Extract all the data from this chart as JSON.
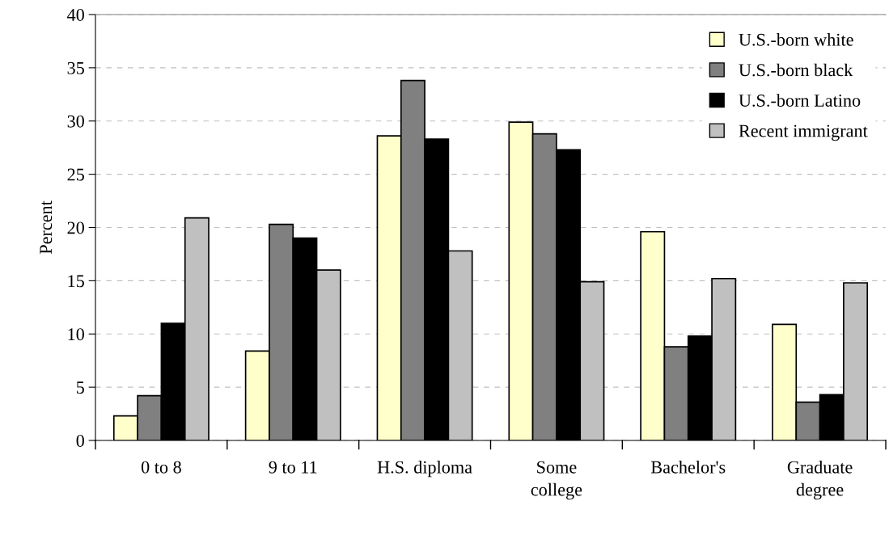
{
  "chart_data": {
    "type": "bar",
    "ylabel": "Percent",
    "categories": [
      "0 to 8",
      "9 to 11",
      "H.S. diploma",
      "Some\ncollege",
      "Bachelor's",
      "Graduate\ndegree"
    ],
    "series": [
      {
        "name": "U.S.-born white",
        "color": "#ffffcc",
        "values": [
          2.3,
          8.4,
          28.6,
          29.9,
          19.6,
          10.9
        ]
      },
      {
        "name": "U.S.-born black",
        "color": "#808080",
        "values": [
          4.2,
          20.3,
          33.8,
          28.8,
          8.8,
          3.6
        ]
      },
      {
        "name": "U.S.-born Latino",
        "color": "#000000",
        "values": [
          11.0,
          19.0,
          28.3,
          27.3,
          9.8,
          4.3
        ]
      },
      {
        "name": "Recent immigrant",
        "color": "#c0c0c0",
        "values": [
          20.9,
          16.0,
          17.8,
          14.9,
          15.2,
          14.8
        ]
      }
    ],
    "ylim": [
      0,
      40
    ],
    "yticks": [
      0,
      5,
      10,
      15,
      20,
      25,
      30,
      35,
      40
    ],
    "grid": "y",
    "legend": "top right"
  }
}
